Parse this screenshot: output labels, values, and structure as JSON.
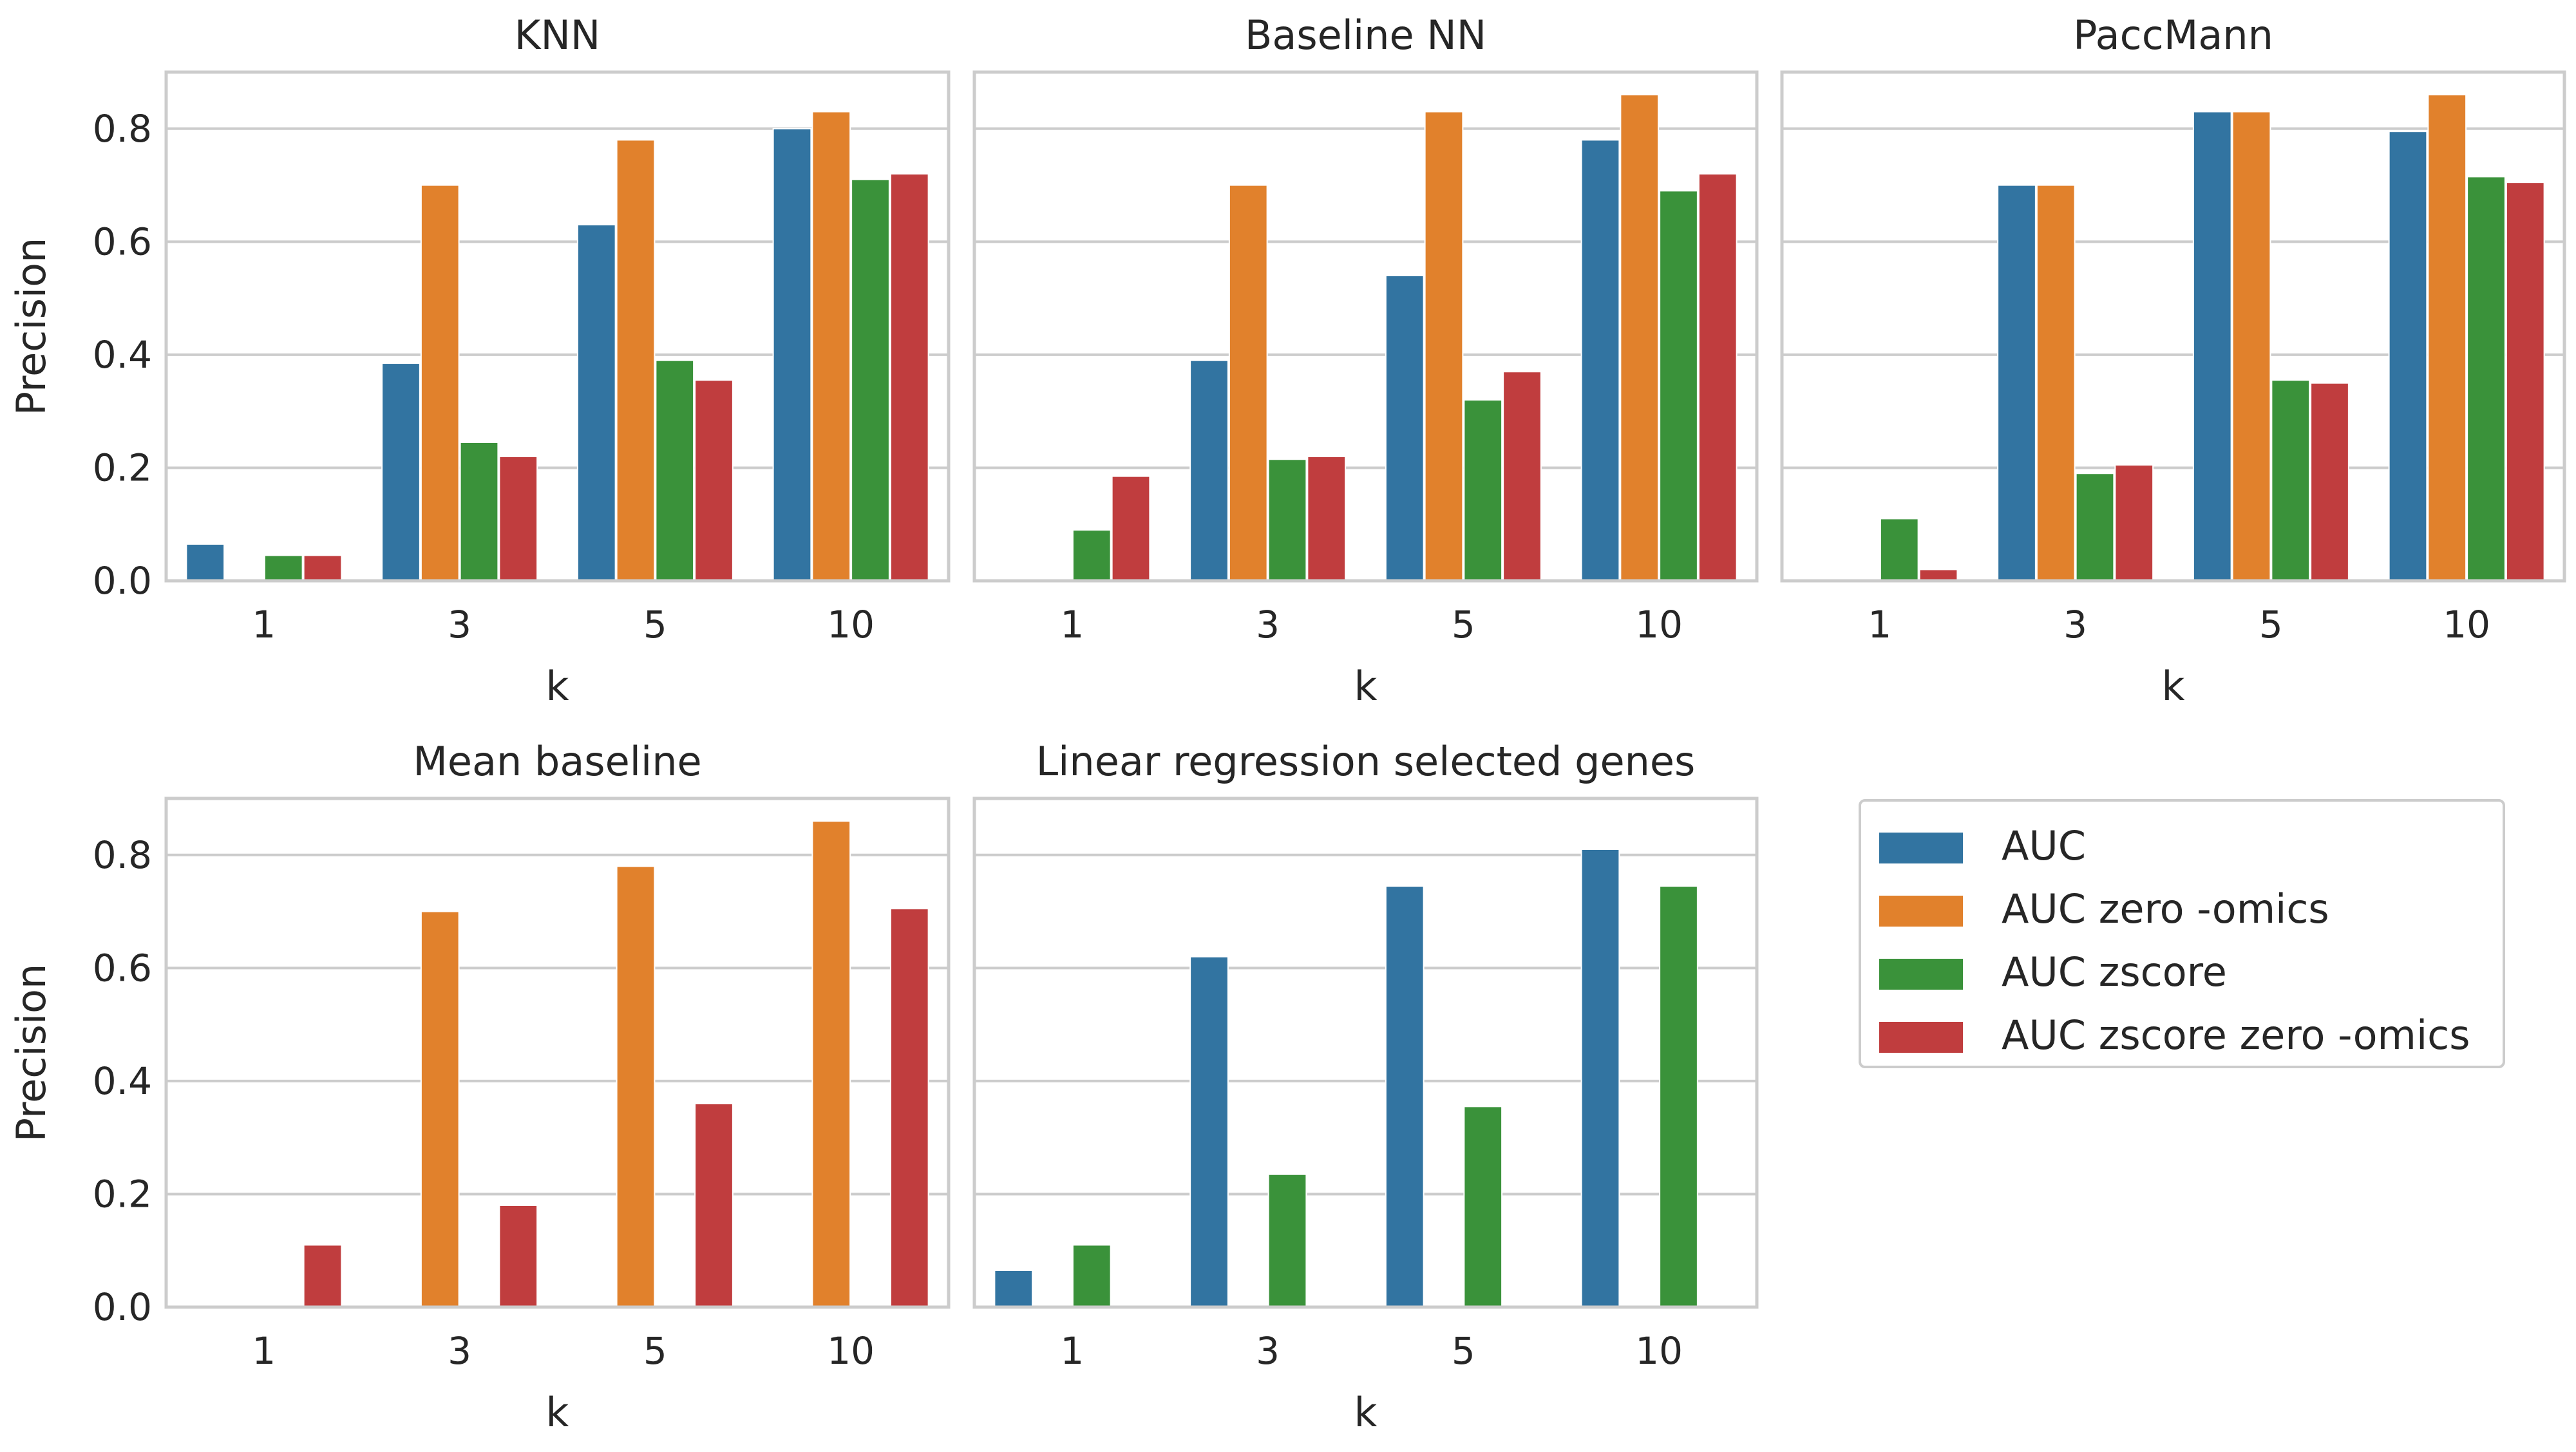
{
  "figure": {
    "shared_categories": [
      "1",
      "3",
      "5",
      "10"
    ],
    "series_colors": {
      "AUC": "#3274a1",
      "AUC zero -omics": "#e1812c",
      "AUC zscore": "#3a923a",
      "AUC zscore zero -omics": "#c03d3e"
    }
  },
  "legend": {
    "entries": [
      {
        "label": "AUC",
        "color": "#3274a1"
      },
      {
        "label": "AUC zero -omics",
        "color": "#e1812c"
      },
      {
        "label": "AUC zscore",
        "color": "#3a923a"
      },
      {
        "label": "AUC zscore zero -omics",
        "color": "#c03d3e"
      }
    ]
  },
  "chart_data": [
    {
      "type": "bar",
      "title": "KNN",
      "xlabel": "k",
      "ylabel": "Precision",
      "categories": [
        "1",
        "3",
        "5",
        "10"
      ],
      "ylim": [
        0,
        0.9
      ],
      "yticks": [
        "0.0",
        "0.2",
        "0.4",
        "0.6",
        "0.8"
      ],
      "grid": true,
      "series": [
        {
          "name": "AUC",
          "values": [
            0.065,
            0.385,
            0.63,
            0.8
          ]
        },
        {
          "name": "AUC zero -omics",
          "values": [
            0.0,
            0.7,
            0.78,
            0.83
          ]
        },
        {
          "name": "AUC zscore",
          "values": [
            0.045,
            0.245,
            0.39,
            0.71
          ]
        },
        {
          "name": "AUC zscore zero -omics",
          "values": [
            0.045,
            0.22,
            0.355,
            0.72
          ]
        }
      ]
    },
    {
      "type": "bar",
      "title": "Baseline NN",
      "xlabel": "k",
      "ylabel": "",
      "categories": [
        "1",
        "3",
        "5",
        "10"
      ],
      "ylim": [
        0,
        0.9
      ],
      "yticks": [],
      "grid": true,
      "series": [
        {
          "name": "AUC",
          "values": [
            0.0,
            0.39,
            0.54,
            0.78
          ]
        },
        {
          "name": "AUC zero -omics",
          "values": [
            0.0,
            0.7,
            0.83,
            0.86
          ]
        },
        {
          "name": "AUC zscore",
          "values": [
            0.09,
            0.215,
            0.32,
            0.69
          ]
        },
        {
          "name": "AUC zscore zero -omics",
          "values": [
            0.185,
            0.22,
            0.37,
            0.72
          ]
        }
      ]
    },
    {
      "type": "bar",
      "title": "PaccMann",
      "xlabel": "k",
      "ylabel": "",
      "categories": [
        "1",
        "3",
        "5",
        "10"
      ],
      "ylim": [
        0,
        0.9
      ],
      "yticks": [],
      "grid": true,
      "series": [
        {
          "name": "AUC",
          "values": [
            0.0,
            0.7,
            0.83,
            0.795
          ]
        },
        {
          "name": "AUC zero -omics",
          "values": [
            0.0,
            0.7,
            0.83,
            0.86
          ]
        },
        {
          "name": "AUC zscore",
          "values": [
            0.11,
            0.19,
            0.355,
            0.715
          ]
        },
        {
          "name": "AUC zscore zero -omics",
          "values": [
            0.02,
            0.205,
            0.35,
            0.705
          ]
        }
      ]
    },
    {
      "type": "bar",
      "title": "Mean baseline",
      "xlabel": "k",
      "ylabel": "Precision",
      "categories": [
        "1",
        "3",
        "5",
        "10"
      ],
      "ylim": [
        0,
        0.9
      ],
      "yticks": [
        "0.0",
        "0.2",
        "0.4",
        "0.6",
        "0.8"
      ],
      "grid": true,
      "series": [
        {
          "name": "AUC",
          "values": [
            0.0,
            0.0,
            0.0,
            0.0
          ]
        },
        {
          "name": "AUC zero -omics",
          "values": [
            0.0,
            0.7,
            0.78,
            0.86
          ]
        },
        {
          "name": "AUC zscore",
          "values": [
            0.0,
            0.0,
            0.0,
            0.0
          ]
        },
        {
          "name": "AUC zscore zero -omics",
          "values": [
            0.11,
            0.18,
            0.36,
            0.705
          ]
        }
      ]
    },
    {
      "type": "bar",
      "title": "Linear regression selected genes",
      "xlabel": "k",
      "ylabel": "",
      "categories": [
        "1",
        "3",
        "5",
        "10"
      ],
      "ylim": [
        0,
        0.9
      ],
      "yticks": [],
      "grid": true,
      "series": [
        {
          "name": "AUC",
          "values": [
            0.065,
            0.62,
            0.745,
            0.81
          ]
        },
        {
          "name": "AUC zero -omics",
          "values": [
            0.0,
            0.0,
            0.0,
            0.0
          ]
        },
        {
          "name": "AUC zscore",
          "values": [
            0.11,
            0.235,
            0.355,
            0.745
          ]
        },
        {
          "name": "AUC zscore zero -omics",
          "values": [
            0.0,
            0.0,
            0.0,
            0.0
          ]
        }
      ]
    }
  ]
}
